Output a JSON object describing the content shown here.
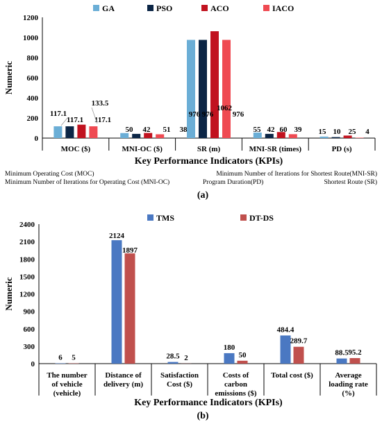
{
  "chart_data": [
    {
      "type": "bar",
      "xlabel": "Key Performance Indicators (KPIs)",
      "ylabel": "Numeric",
      "ylim": [
        0,
        1200
      ],
      "yticks": [
        0,
        200,
        400,
        600,
        800,
        1000,
        1200
      ],
      "categories": [
        "MOC ($)",
        "MNI-OC ($)",
        "SR (m)",
        "MNI-SR (times)",
        "PD (s)"
      ],
      "series": [
        {
          "name": "GA",
          "color": "#6baed6",
          "values": [
            117.1,
            50,
            976,
            55,
            15
          ]
        },
        {
          "name": "PSO",
          "color": "#0b2545",
          "values": [
            117.1,
            42,
            976,
            42,
            10
          ]
        },
        {
          "name": "ACO",
          "color": "#c1121f",
          "values": [
            133.5,
            51,
            1062,
            60,
            25
          ]
        },
        {
          "name": "IACO",
          "color": "#ef4a52",
          "values": [
            117.1,
            38,
            976,
            39,
            4
          ]
        }
      ],
      "legend_position": "top",
      "grid": false,
      "notes": [
        "Minimum Operating Cost (MOC)",
        "Minimum Number of Iterations for Shortest Route(MNI-SR)",
        "Minimum Number of Iterations for Operating Cost (MNI-OC)",
        "Program Duration(PD)",
        "Shortest Route (SR)"
      ],
      "caption": "(a)"
    },
    {
      "type": "bar",
      "xlabel": "Key Performance Indicators (KPIs)",
      "ylabel": "Numeric",
      "ylim": [
        0,
        2400
      ],
      "yticks": [
        0,
        300,
        600,
        900,
        1200,
        1500,
        1800,
        2100,
        2400
      ],
      "categories": [
        [
          "The number",
          "of vehicle",
          "(vehicle)"
        ],
        [
          "Distance of",
          "delivery (m)"
        ],
        [
          "Satisfaction",
          "Cost  ($)"
        ],
        [
          "Costs of",
          "carbon",
          "emissions ($)"
        ],
        [
          "Total cost ($)"
        ],
        [
          "Average",
          "loading rate",
          "(%)"
        ]
      ],
      "series": [
        {
          "name": "TMS",
          "color": "#4a78c2",
          "values": [
            6,
            2124,
            28.5,
            180,
            484.4,
            88.5
          ]
        },
        {
          "name": "DT-DS",
          "color": "#c0504d",
          "values": [
            5,
            1897,
            2,
            50,
            289.7,
            95.2
          ]
        }
      ],
      "legend_position": "top",
      "grid": false,
      "caption": "(b)"
    }
  ]
}
